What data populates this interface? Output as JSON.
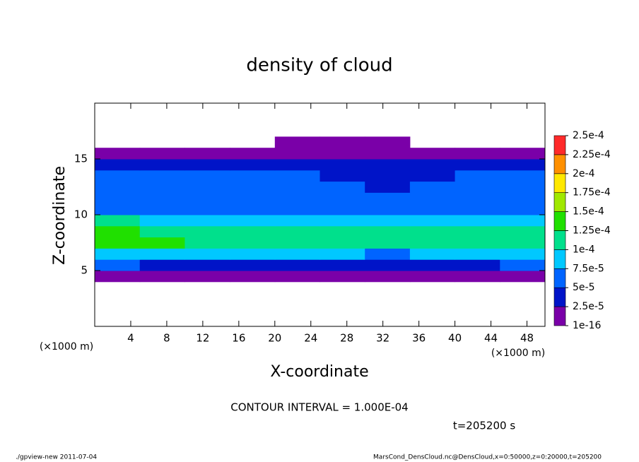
{
  "chart_data": {
    "type": "heatmap",
    "title": "density of cloud",
    "x_label": "X-coordinate",
    "y_label": "Z-coordinate",
    "x_unit_label": "(×1000 m)",
    "y_unit_label": "(×1000 m)",
    "contour_note": "CONTOUR INTERVAL = 1.000E-04",
    "time_note": "t=205200 s",
    "footer_left": "./gpview-new  2011-07-04",
    "footer_right": "MarsCond_DensCloud.nc@DensCloud,x=0:50000,z=0:20000,t=205200",
    "xlim": [
      0,
      50
    ],
    "ylim": [
      0,
      20
    ],
    "xticks": [
      4,
      8,
      12,
      16,
      20,
      24,
      28,
      32,
      36,
      40,
      44,
      48
    ],
    "yticks": [
      5,
      10,
      15
    ],
    "x": [
      2.5,
      7.5,
      12.5,
      17.5,
      22.5,
      27.5,
      32.5,
      37.5,
      42.5,
      47.5
    ],
    "z": [
      0.5,
      1.5,
      2.5,
      3.5,
      4.5,
      5.5,
      6.5,
      7.5,
      8.5,
      9.5,
      10.5,
      11.5,
      12.5,
      13.5,
      14.5,
      15.5,
      16.5,
      17.5,
      18.5,
      19.5
    ],
    "values": [
      [
        0,
        0,
        0,
        0,
        0,
        0,
        0,
        0,
        0,
        0
      ],
      [
        0,
        0,
        0,
        0,
        0,
        0,
        0,
        0,
        0,
        0
      ],
      [
        0,
        0,
        0,
        0,
        0,
        0,
        0,
        0,
        0,
        0
      ],
      [
        0,
        0,
        0,
        0,
        0,
        0,
        0,
        0,
        0,
        0
      ],
      [
        1e-05,
        1e-05,
        1e-05,
        1e-05,
        1e-05,
        1e-05,
        1e-05,
        1e-05,
        1e-05,
        1e-05
      ],
      [
        5e-05,
        4e-05,
        4e-05,
        4e-05,
        3e-05,
        4e-05,
        3e-05,
        4e-05,
        4e-05,
        5e-05
      ],
      [
        9e-05,
        9e-05,
        9e-05,
        8e-05,
        8e-05,
        8e-05,
        7e-05,
        8e-05,
        8e-05,
        9e-05
      ],
      [
        0.00014,
        0.00013,
        0.00012,
        0.00011,
        0.00011,
        0.00011,
        0.00011,
        0.00011,
        0.00011,
        0.00012
      ],
      [
        0.00013,
        0.00012,
        0.00011,
        0.000105,
        0.0001,
        0.0001,
        0.000105,
        0.0001,
        0.000105,
        0.00011
      ],
      [
        0.0001,
        9e-05,
        9e-05,
        8e-05,
        8e-05,
        8e-05,
        8.5e-05,
        9e-05,
        8.5e-05,
        8.5e-05
      ],
      [
        7e-05,
        7e-05,
        7e-05,
        6.5e-05,
        6.5e-05,
        6.5e-05,
        7e-05,
        7e-05,
        7e-05,
        7e-05
      ],
      [
        6e-05,
        6e-05,
        6e-05,
        6e-05,
        6e-05,
        6e-05,
        5e-05,
        6e-05,
        6e-05,
        6e-05
      ],
      [
        5.5e-05,
        5.5e-05,
        6e-05,
        6e-05,
        5.5e-05,
        5e-05,
        4e-05,
        5e-05,
        5.5e-05,
        5.5e-05
      ],
      [
        5e-05,
        5e-05,
        5e-05,
        5.5e-05,
        5e-05,
        4.5e-05,
        3e-05,
        4.5e-05,
        5e-05,
        5e-05
      ],
      [
        4e-05,
        4e-05,
        4.5e-05,
        4.5e-05,
        4e-05,
        4e-05,
        3e-05,
        4e-05,
        4e-05,
        4e-05
      ],
      [
        1e-05,
        1e-05,
        1e-05,
        1e-05,
        1e-05,
        1e-05,
        1e-05,
        1e-05,
        1e-05,
        1e-05
      ],
      [
        0,
        0,
        0,
        0,
        1e-05,
        1e-05,
        1e-05,
        0,
        0,
        0
      ],
      [
        0,
        0,
        0,
        0,
        0,
        0,
        0,
        0,
        0,
        0
      ],
      [
        0,
        0,
        0,
        0,
        0,
        0,
        0,
        0,
        0,
        0
      ],
      [
        0,
        0,
        0,
        0,
        0,
        0,
        0,
        0,
        0,
        0
      ]
    ],
    "levels": [
      {
        "value": 1e-16,
        "label": "1e-16"
      },
      {
        "value": 2.5e-05,
        "label": "2.5e-5"
      },
      {
        "value": 5e-05,
        "label": "5e-5"
      },
      {
        "value": 7.5e-05,
        "label": "7.5e-5"
      },
      {
        "value": 0.0001,
        "label": "1e-4"
      },
      {
        "value": 0.000125,
        "label": "1.25e-4"
      },
      {
        "value": 0.00015,
        "label": "1.5e-4"
      },
      {
        "value": 0.000175,
        "label": "1.75e-4"
      },
      {
        "value": 0.0002,
        "label": "2e-4"
      },
      {
        "value": 0.000225,
        "label": "2.25e-4"
      },
      {
        "value": 0.00025,
        "label": "2.5e-4"
      }
    ],
    "colors": [
      "#7a00a8",
      "#0014c8",
      "#0064ff",
      "#00c8ff",
      "#00e08c",
      "#20e000",
      "#a0e800",
      "#ffe800",
      "#ff9000",
      "#ff2a2a"
    ]
  }
}
